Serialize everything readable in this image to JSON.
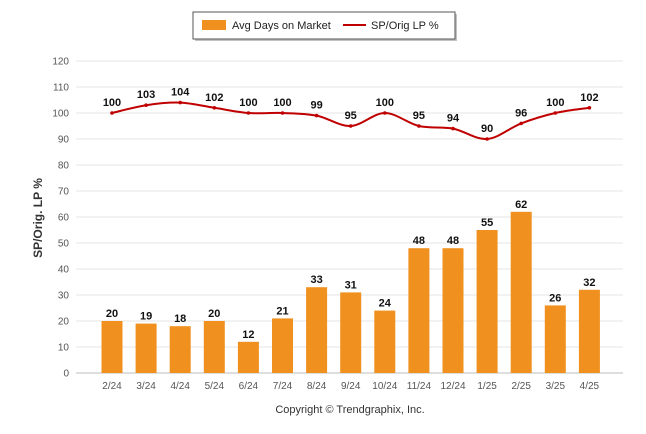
{
  "chart_data": {
    "type": "bar",
    "categories": [
      "2/24",
      "3/24",
      "4/24",
      "5/24",
      "6/24",
      "7/24",
      "8/24",
      "9/24",
      "10/24",
      "11/24",
      "12/24",
      "1/25",
      "2/25",
      "3/25",
      "4/25"
    ],
    "series": [
      {
        "name": "Avg Days on Market",
        "type": "bar",
        "color": "#F0901E",
        "values": [
          20,
          19,
          18,
          20,
          12,
          21,
          33,
          31,
          24,
          48,
          48,
          55,
          62,
          26,
          32
        ]
      },
      {
        "name": "SP/Orig LP %",
        "type": "line",
        "color": "#C00000",
        "values": [
          100,
          103,
          104,
          102,
          100,
          100,
          99,
          95,
          100,
          95,
          94,
          90,
          96,
          100,
          102
        ]
      }
    ],
    "ylabel": "SP/Orig. LP %",
    "ylim": [
      0,
      120
    ],
    "yticks": [
      0,
      10,
      20,
      30,
      40,
      50,
      60,
      70,
      80,
      90,
      100,
      110,
      120
    ],
    "grid": true,
    "legend_position": "top-center"
  },
  "footer": {
    "copyright": "Copyright © Trendgraphix, Inc."
  }
}
